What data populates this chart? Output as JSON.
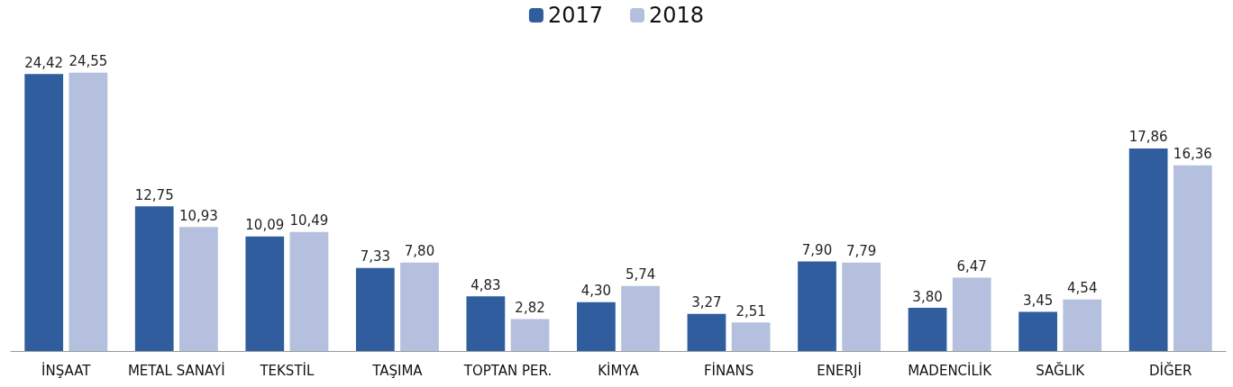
{
  "chart_data": {
    "type": "bar",
    "categories": [
      "İNŞAAT",
      "METAL SANAYİ",
      "TEKSTİL",
      "TAŞIMA",
      "TOPTAN PER.",
      "KİMYA",
      "FİNANS",
      "ENERJİ",
      "MADENCİLİK",
      "SAĞLIK",
      "DİĞER"
    ],
    "series": [
      {
        "name": "2017",
        "color": "#2f5d9e",
        "values": [
          24.42,
          12.75,
          10.09,
          7.33,
          4.83,
          4.3,
          3.27,
          7.9,
          3.8,
          3.45,
          17.86
        ],
        "value_labels": [
          "24,42",
          "12,75",
          "10,09",
          "7,33",
          "4,83",
          "4,30",
          "3,27",
          "7,90",
          "3,80",
          "3,45",
          "17,86"
        ]
      },
      {
        "name": "2018",
        "color": "#b4c0de",
        "values": [
          24.55,
          10.93,
          10.49,
          7.8,
          2.82,
          5.74,
          2.51,
          7.79,
          6.47,
          4.54,
          16.36
        ],
        "value_labels": [
          "24,55",
          "10,93",
          "10,49",
          "7,80",
          "2,82",
          "5,74",
          "2,51",
          "7,79",
          "6,47",
          "4,54",
          "16,36"
        ]
      }
    ],
    "legend": "top",
    "grid": false,
    "tick_labels": "x"
  }
}
